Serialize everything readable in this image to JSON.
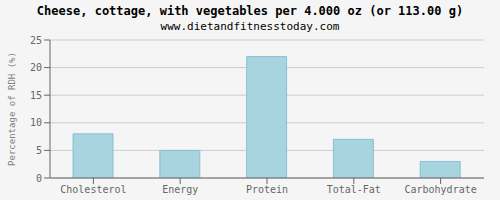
{
  "chart_data": {
    "type": "bar",
    "title": "Cheese, cottage, with vegetables per 4.000 oz (or 113.00 g)",
    "subtitle": "www.dietandfitnesstoday.com",
    "categories": [
      "Cholesterol",
      "Energy",
      "Protein",
      "Total-Fat",
      "Carbohydrate"
    ],
    "values": [
      8,
      5,
      22,
      7,
      3
    ],
    "color": "#a8d4e0",
    "ylabel": "Percentage of RDH (%)",
    "ylim": [
      0,
      25
    ],
    "yticks": [
      0,
      5,
      10,
      15,
      20,
      25
    ],
    "grid": true
  }
}
